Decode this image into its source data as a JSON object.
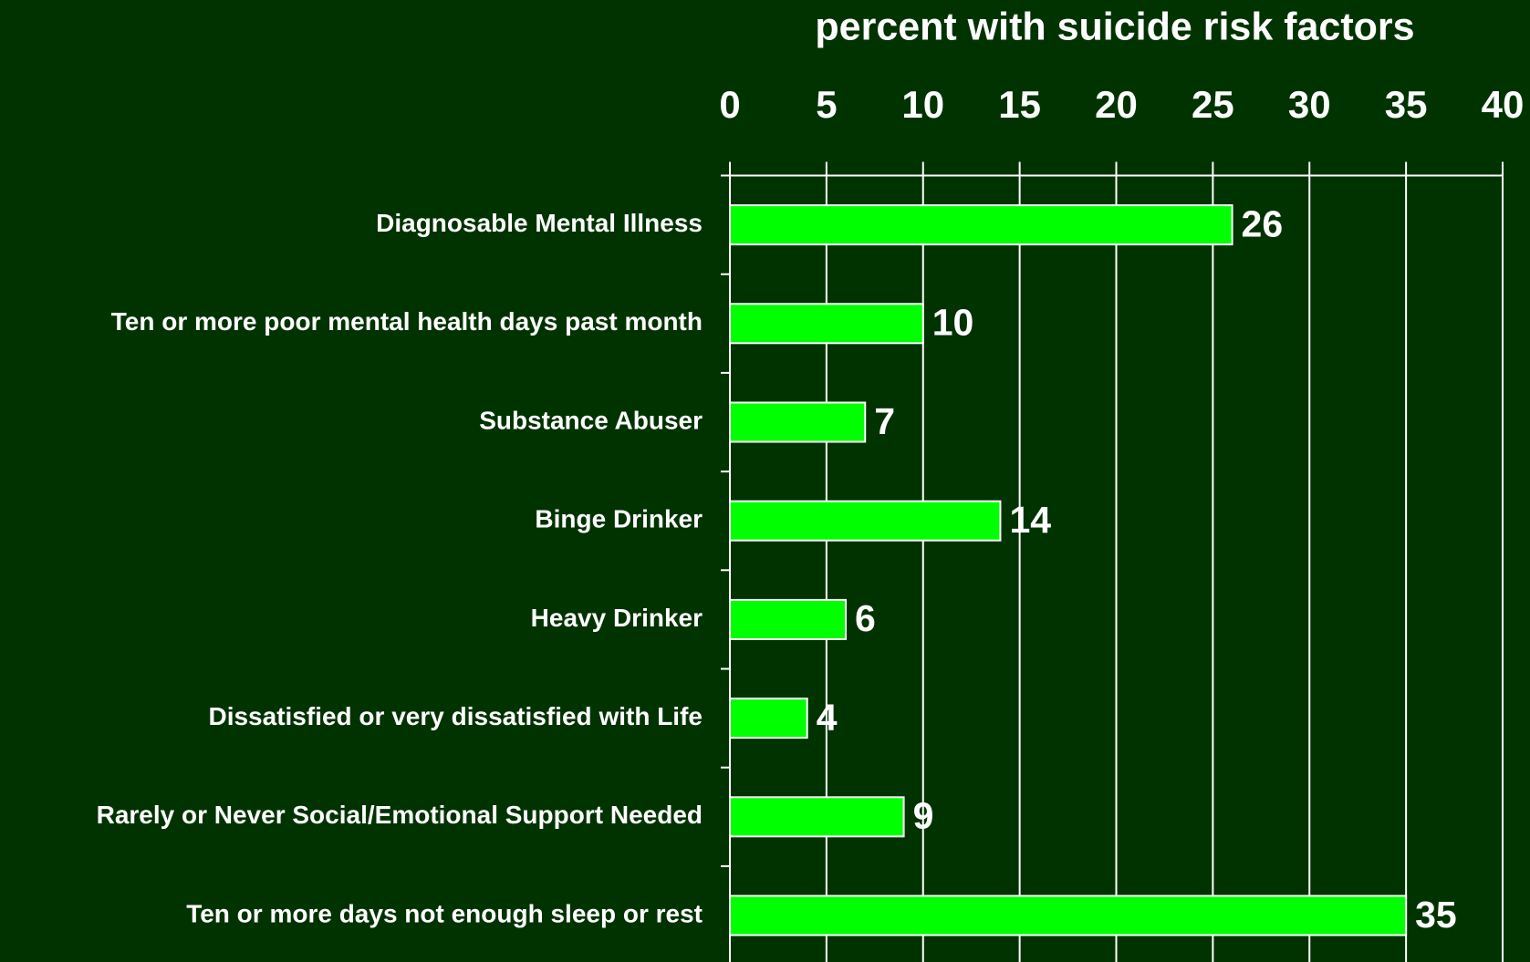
{
  "chart_data": {
    "type": "bar",
    "orientation": "horizontal",
    "title": "percent with suicide risk factors",
    "categories": [
      "Diagnosable Mental Illness",
      "Ten or more poor mental health days past month",
      "Substance Abuser",
      "Binge Drinker",
      "Heavy Drinker",
      "Dissatisfied or very dissatisfied with Life",
      "Rarely or Never Social/Emotional Support Needed",
      "Ten or more days not enough sleep or rest"
    ],
    "values": [
      26,
      10,
      7,
      14,
      6,
      4,
      9,
      35
    ],
    "color": "#00ff00",
    "xlim": [
      0,
      40
    ],
    "xticks": [
      0,
      5,
      10,
      15,
      20,
      25,
      30,
      35,
      40
    ],
    "grid": true
  }
}
